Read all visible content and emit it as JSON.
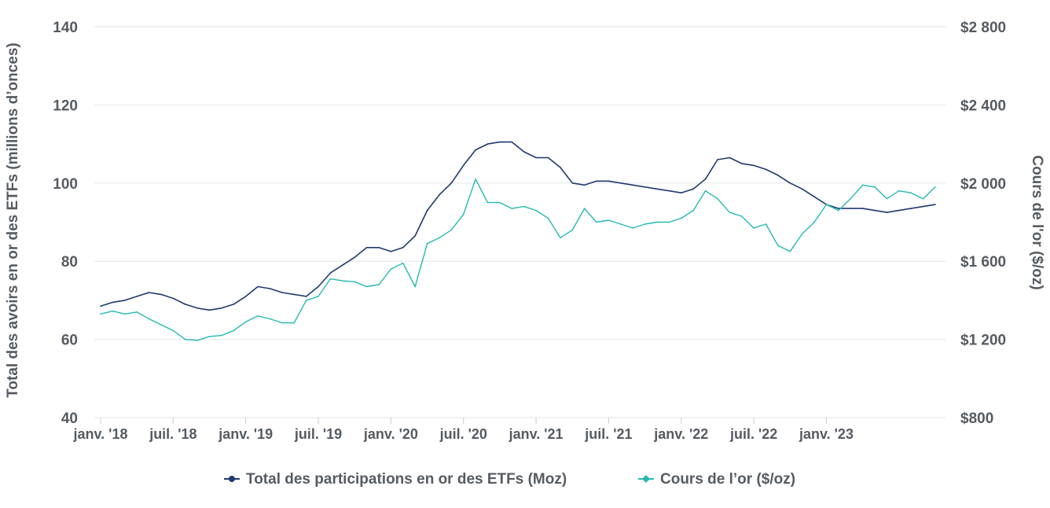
{
  "chart_data": {
    "type": "line",
    "title": "",
    "y_left_label": "Total des avoirs en or des ETFs (millions d’onces)",
    "y_right_label": "Cours de l'or ($/oz)",
    "y_left_ticks": [
      "140",
      "120",
      "100",
      "80",
      "60",
      "40"
    ],
    "y_left_range": [
      40,
      140
    ],
    "y_right_ticks": [
      "$2 800",
      "$2 400",
      "$2 000",
      "$1 600",
      "$1 200",
      "$800"
    ],
    "y_right_range": [
      800,
      2800
    ],
    "x_ticks": [
      "janv. '18",
      "juil. '18",
      "janv. '19",
      "juil. '19",
      "janv. '20",
      "juil. '20",
      "janv. '21",
      "juil. '21",
      "janv. '22",
      "juil. '22",
      "janv. '23"
    ],
    "x_range": [
      "2018-01",
      "2023-10"
    ],
    "grid": "horizontal",
    "legend_position": "bottom",
    "series": [
      {
        "name": "Total des participations en or des ETFs (Moz)",
        "axis": "left",
        "color": "#1f3a6e",
        "x": [
          "2018-01",
          "2018-02",
          "2018-03",
          "2018-04",
          "2018-05",
          "2018-06",
          "2018-07",
          "2018-08",
          "2018-09",
          "2018-10",
          "2018-11",
          "2018-12",
          "2019-01",
          "2019-02",
          "2019-03",
          "2019-04",
          "2019-05",
          "2019-06",
          "2019-07",
          "2019-08",
          "2019-09",
          "2019-10",
          "2019-11",
          "2019-12",
          "2020-01",
          "2020-02",
          "2020-03",
          "2020-04",
          "2020-05",
          "2020-06",
          "2020-07",
          "2020-08",
          "2020-09",
          "2020-10",
          "2020-11",
          "2020-12",
          "2021-01",
          "2021-02",
          "2021-03",
          "2021-04",
          "2021-05",
          "2021-06",
          "2021-07",
          "2021-08",
          "2021-09",
          "2021-10",
          "2021-11",
          "2021-12",
          "2022-01",
          "2022-02",
          "2022-03",
          "2022-04",
          "2022-05",
          "2022-06",
          "2022-07",
          "2022-08",
          "2022-09",
          "2022-10",
          "2022-11",
          "2022-12",
          "2023-01",
          "2023-02",
          "2023-03",
          "2023-04",
          "2023-05",
          "2023-06",
          "2023-07",
          "2023-08",
          "2023-09",
          "2023-10"
        ],
        "values": [
          68.5,
          69.5,
          70.0,
          71.0,
          72.0,
          71.5,
          70.5,
          69.0,
          68.0,
          67.5,
          68.0,
          69.0,
          71.0,
          73.5,
          73.0,
          72.0,
          71.5,
          71.0,
          73.5,
          77.0,
          79.0,
          81.0,
          83.5,
          83.5,
          82.5,
          83.5,
          86.5,
          93.0,
          97.0,
          100.0,
          104.5,
          108.5,
          110.0,
          110.5,
          110.5,
          108.0,
          106.5,
          106.5,
          104.0,
          100.0,
          99.5,
          100.5,
          100.5,
          100.0,
          99.5,
          99.0,
          98.5,
          98.0,
          97.5,
          98.5,
          101.0,
          106.0,
          106.5,
          105.0,
          104.5,
          103.5,
          102.0,
          100.0,
          98.5,
          96.5,
          94.5,
          93.5,
          93.5,
          93.5,
          93.0,
          92.5,
          93.0,
          93.5,
          94.0,
          94.5
        ]
      },
      {
        "name": "Cours de l’or ($/oz)",
        "axis": "right",
        "color": "#26b9b2",
        "x": [
          "2018-01",
          "2018-02",
          "2018-03",
          "2018-04",
          "2018-05",
          "2018-06",
          "2018-07",
          "2018-08",
          "2018-09",
          "2018-10",
          "2018-11",
          "2018-12",
          "2019-01",
          "2019-02",
          "2019-03",
          "2019-04",
          "2019-05",
          "2019-06",
          "2019-07",
          "2019-08",
          "2019-09",
          "2019-10",
          "2019-11",
          "2019-12",
          "2020-01",
          "2020-02",
          "2020-03",
          "2020-04",
          "2020-05",
          "2020-06",
          "2020-07",
          "2020-08",
          "2020-09",
          "2020-10",
          "2020-11",
          "2020-12",
          "2021-01",
          "2021-02",
          "2021-03",
          "2021-04",
          "2021-05",
          "2021-06",
          "2021-07",
          "2021-08",
          "2021-09",
          "2021-10",
          "2021-11",
          "2021-12",
          "2022-01",
          "2022-02",
          "2022-03",
          "2022-04",
          "2022-05",
          "2022-06",
          "2022-07",
          "2022-08",
          "2022-09",
          "2022-10",
          "2022-11",
          "2022-12",
          "2023-01",
          "2023-02",
          "2023-03",
          "2023-04",
          "2023-05",
          "2023-06",
          "2023-07",
          "2023-08",
          "2023-09",
          "2023-10"
        ],
        "values": [
          1330,
          1345,
          1330,
          1340,
          1305,
          1275,
          1245,
          1200,
          1195,
          1215,
          1220,
          1245,
          1290,
          1320,
          1305,
          1285,
          1285,
          1400,
          1420,
          1510,
          1500,
          1495,
          1470,
          1480,
          1560,
          1590,
          1470,
          1690,
          1720,
          1760,
          1840,
          2020,
          1900,
          1900,
          1870,
          1880,
          1860,
          1820,
          1720,
          1760,
          1870,
          1800,
          1810,
          1790,
          1770,
          1790,
          1800,
          1800,
          1820,
          1860,
          1960,
          1920,
          1850,
          1830,
          1770,
          1790,
          1680,
          1650,
          1740,
          1800,
          1890,
          1860,
          1920,
          1990,
          1980,
          1920,
          1960,
          1950,
          1920,
          1980
        ]
      }
    ]
  }
}
